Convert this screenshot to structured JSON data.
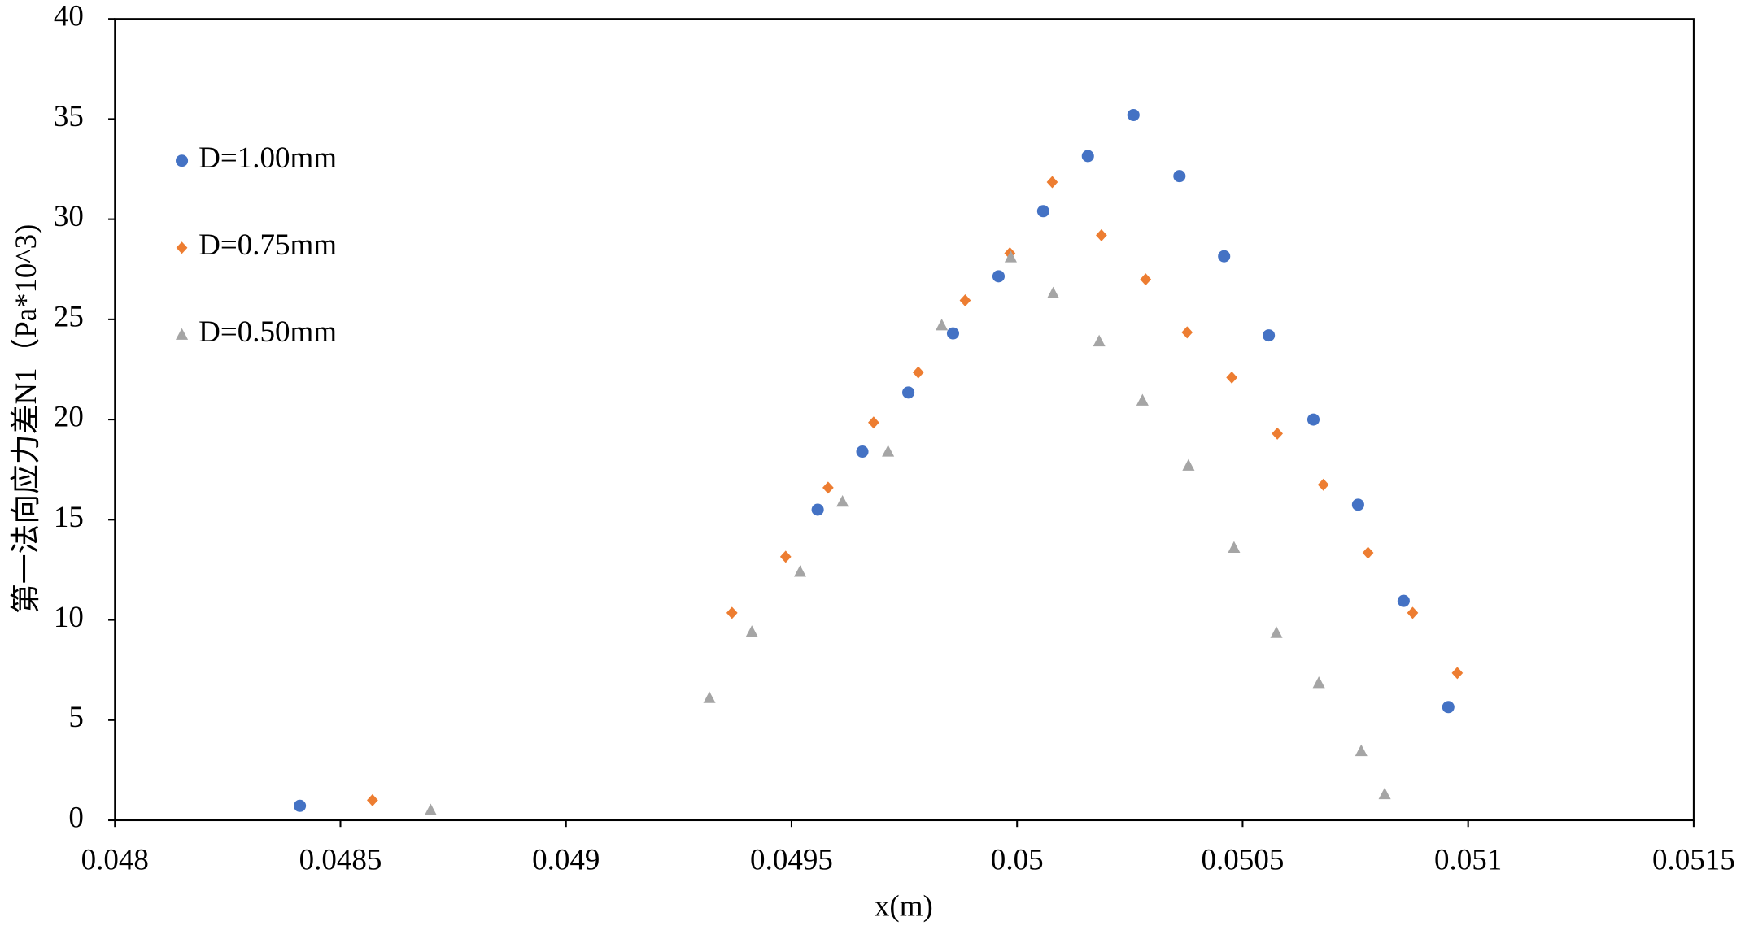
{
  "chart_data": {
    "type": "scatter",
    "xlabel": "x(m)",
    "ylabel": "第一法向应力差N1（Pa*10^3)",
    "xlim": [
      0.048,
      0.0515
    ],
    "xticks": [
      0.048,
      0.0485,
      0.049,
      0.0495,
      0.05,
      0.0505,
      0.051,
      0.0515
    ],
    "ylim": [
      0,
      40
    ],
    "yticks": [
      0,
      5,
      10,
      15,
      20,
      25,
      30,
      35,
      40
    ],
    "grid": false,
    "legend": "upper left",
    "series": [
      {
        "name": "D=1.00mm",
        "color": "#4472c4",
        "marker": "circle",
        "x": [
          0.04841,
          0.049558,
          0.049657,
          0.049759,
          0.049858,
          0.049959,
          0.050058,
          0.050157,
          0.050258,
          0.05036,
          0.050459,
          0.050558,
          0.050657,
          0.050756,
          0.050857,
          0.050956
        ],
        "values": [
          0.72,
          15.5,
          18.4,
          21.35,
          24.3,
          27.15,
          30.4,
          33.15,
          35.2,
          32.15,
          28.15,
          24.2,
          20.0,
          15.75,
          10.95,
          5.65
        ]
      },
      {
        "name": "D=0.75mm",
        "color": "#ed7d31",
        "marker": "diamond",
        "x": [
          0.048571,
          0.049368,
          0.049487,
          0.049581,
          0.049682,
          0.049781,
          0.049885,
          0.049984,
          0.050078,
          0.050187,
          0.050285,
          0.050377,
          0.050476,
          0.050577,
          0.050679,
          0.050778,
          0.050877,
          0.050976
        ],
        "values": [
          1.0,
          10.35,
          13.15,
          16.6,
          19.85,
          22.35,
          25.95,
          28.3,
          31.85,
          29.2,
          27.0,
          24.35,
          22.1,
          19.3,
          16.75,
          13.35,
          10.35,
          7.35
        ]
      },
      {
        "name": "D=0.50mm",
        "color": "#a5a5a5",
        "marker": "triangle",
        "x": [
          0.0487,
          0.049318,
          0.049412,
          0.049519,
          0.049613,
          0.049714,
          0.049833,
          0.049986,
          0.05008,
          0.050182,
          0.050278,
          0.05038,
          0.050481,
          0.050575,
          0.050669,
          0.050763,
          0.050815
        ],
        "values": [
          0.5,
          6.1,
          9.4,
          12.4,
          15.9,
          18.4,
          24.7,
          28.1,
          26.3,
          23.9,
          20.95,
          17.7,
          13.6,
          9.35,
          6.85,
          3.45,
          1.3
        ]
      }
    ]
  }
}
